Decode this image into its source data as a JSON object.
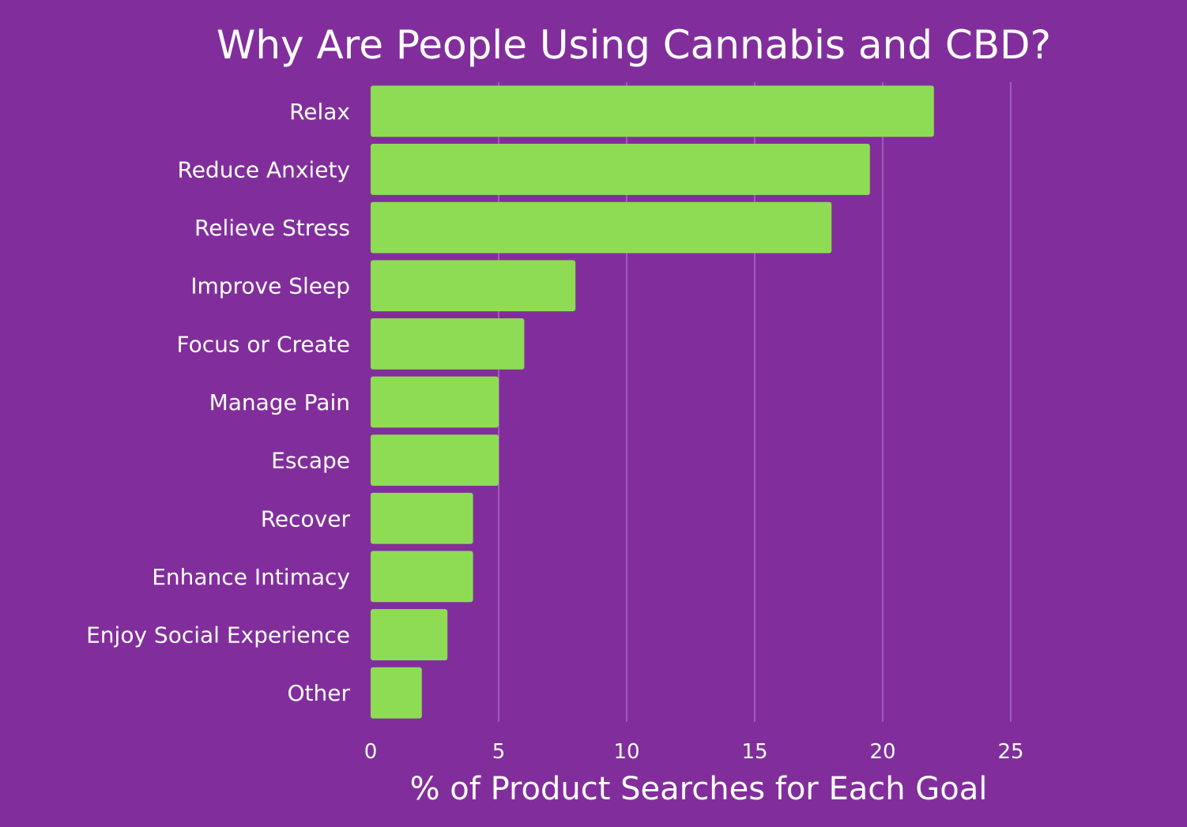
{
  "chart_data": {
    "type": "bar",
    "orientation": "horizontal",
    "title": "Why Are People Using Cannabis and CBD?",
    "xlabel": "% of Product Searches for Each Goal",
    "ylabel": "",
    "categories": [
      "Relax",
      "Reduce Anxiety",
      "Relieve Stress",
      "Improve Sleep",
      "Focus or Create",
      "Manage Pain",
      "Escape",
      "Recover",
      "Enhance Intimacy",
      "Enjoy Social Experience",
      "Other"
    ],
    "values": [
      22,
      19.5,
      18,
      8,
      6,
      5,
      5,
      4,
      4,
      3,
      2
    ],
    "xlim": [
      0,
      25
    ],
    "xticks": [
      "0",
      "5",
      "10",
      "15",
      "20",
      "25"
    ],
    "grid": true,
    "legend": "none"
  },
  "colors": {
    "background": "#812e9c",
    "bar": "#8ddc54",
    "grid": "#a66bbd",
    "text": "#ffffff"
  }
}
